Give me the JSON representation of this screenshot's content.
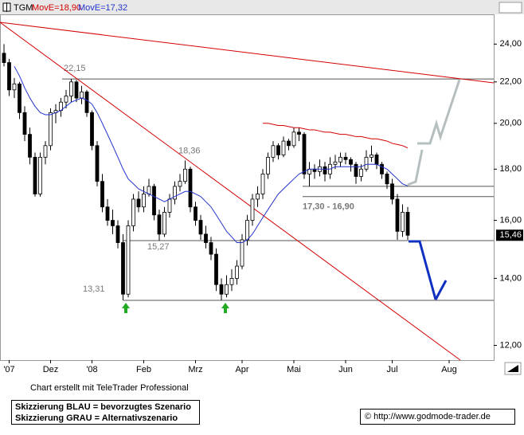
{
  "chart_data": {
    "type": "candlestick",
    "log_scale": true,
    "ylim": [
      11.6,
      25.7
    ],
    "yticks": [
      {
        "value": 12,
        "label": "12,00"
      },
      {
        "value": 14,
        "label": "14,00"
      },
      {
        "value": 16,
        "label": "16,00"
      },
      {
        "value": 18,
        "label": "18,00"
      },
      {
        "value": 20,
        "label": "20,00"
      },
      {
        "value": 22,
        "label": "22,00"
      },
      {
        "value": 24,
        "label": "24,00"
      }
    ],
    "categories": [
      null,
      "'07",
      null,
      null,
      null,
      null,
      null,
      null,
      null,
      "Dez",
      null,
      null,
      null,
      null,
      null,
      null,
      null,
      "'08",
      null,
      null,
      null,
      null,
      null,
      null,
      null,
      null,
      null,
      "Feb",
      null,
      null,
      null,
      null,
      null,
      null,
      null,
      null,
      null,
      "Mrz",
      null,
      null,
      null,
      null,
      null,
      null,
      null,
      null,
      "Apr",
      null,
      null,
      null,
      null,
      null,
      null,
      null,
      null,
      null,
      "Mai",
      null,
      null,
      null,
      null,
      null,
      null,
      null,
      null,
      null,
      "Jun",
      null,
      null,
      null,
      null,
      null,
      null,
      null,
      null,
      "Jul",
      null,
      null,
      null,
      null,
      null,
      null,
      null,
      null,
      null,
      null,
      "Aug",
      null,
      null,
      null,
      null,
      null,
      null,
      null,
      null
    ],
    "series": [
      {
        "name": "TGM",
        "open": [
          23.5,
          23.0,
          21.6,
          21.9,
          20.5,
          19.5,
          18.5,
          17.0,
          18.5,
          19.0,
          20.5,
          20.6,
          21.0,
          21.3,
          22.0,
          21.2,
          21.5,
          20.5,
          19.0,
          17.5,
          16.5,
          16.0,
          15.8,
          15.2,
          13.5,
          15.8,
          16.8,
          16.5,
          17.0,
          17.3,
          16.2,
          15.5,
          16.3,
          16.8,
          17.3,
          17.5,
          18.0,
          16.5,
          16.0,
          15.5,
          15.2,
          14.8,
          13.8,
          13.5,
          13.8,
          14.0,
          14.4,
          15.3,
          16.0,
          16.8,
          17.0,
          17.8,
          18.5,
          19.0,
          18.6,
          19.2,
          19.0,
          19.6,
          19.5,
          17.8,
          18.0,
          17.9,
          18.1,
          17.8,
          18.2,
          18.3,
          18.5,
          18.4,
          18.2,
          17.7,
          18.0,
          18.5,
          18.6,
          18.2,
          17.8,
          17.4,
          16.8,
          15.6,
          16.3,
          null,
          null,
          null,
          null,
          null,
          null,
          null,
          null,
          null,
          null,
          null,
          null,
          null,
          null,
          null,
          null
        ],
        "high": [
          24.0,
          23.2,
          22.2,
          22.0,
          20.8,
          19.8,
          18.7,
          18.7,
          19.2,
          20.7,
          20.9,
          21.2,
          21.6,
          22.15,
          22.1,
          21.8,
          21.6,
          20.6,
          19.2,
          17.8,
          16.8,
          16.4,
          16.0,
          15.5,
          16.0,
          17.0,
          17.1,
          17.3,
          17.6,
          17.4,
          16.4,
          16.5,
          17.0,
          17.5,
          17.8,
          18.36,
          18.1,
          16.7,
          16.2,
          15.8,
          15.4,
          15.0,
          14.0,
          14.1,
          14.3,
          14.6,
          15.5,
          16.2,
          17.0,
          17.3,
          18.0,
          18.7,
          19.2,
          19.1,
          19.4,
          19.3,
          19.8,
          19.8,
          19.6,
          18.3,
          18.2,
          18.4,
          18.3,
          18.5,
          18.6,
          18.7,
          18.7,
          18.5,
          18.3,
          18.2,
          18.8,
          19.0,
          18.7,
          18.3,
          17.9,
          17.6,
          17.0,
          16.6,
          16.5,
          null,
          null,
          null,
          null,
          null,
          null,
          null,
          null,
          null,
          null,
          null,
          null,
          null,
          null,
          null,
          null
        ],
        "low": [
          22.8,
          21.3,
          21.2,
          20.2,
          19.2,
          18.2,
          16.9,
          16.9,
          18.2,
          18.8,
          20.0,
          20.3,
          20.7,
          21.0,
          21.0,
          20.9,
          20.3,
          18.8,
          17.3,
          16.3,
          15.8,
          15.5,
          15.0,
          13.31,
          13.4,
          15.6,
          16.3,
          16.3,
          16.9,
          16.0,
          15.27,
          15.4,
          16.1,
          16.6,
          17.1,
          17.4,
          16.3,
          15.8,
          15.3,
          15.0,
          14.6,
          13.6,
          13.31,
          13.4,
          13.6,
          13.8,
          14.3,
          15.1,
          15.8,
          16.5,
          16.8,
          17.6,
          18.3,
          18.4,
          18.5,
          18.8,
          18.9,
          19.2,
          17.6,
          17.3,
          17.6,
          17.7,
          17.5,
          17.6,
          18.0,
          18.1,
          18.2,
          17.9,
          17.4,
          17.5,
          17.9,
          18.3,
          18.0,
          17.6,
          17.2,
          16.6,
          15.3,
          15.4,
          15.3,
          null,
          null,
          null,
          null,
          null,
          null,
          null,
          null,
          null,
          null,
          null,
          null,
          null,
          null,
          null,
          null
        ],
        "close": [
          23.0,
          21.6,
          21.9,
          20.5,
          19.5,
          18.5,
          17.0,
          18.5,
          19.0,
          20.5,
          20.6,
          21.0,
          21.3,
          22.0,
          21.2,
          21.5,
          20.5,
          19.0,
          17.5,
          16.5,
          16.0,
          15.8,
          15.2,
          13.5,
          15.8,
          16.8,
          16.5,
          17.0,
          17.3,
          16.2,
          15.5,
          16.3,
          16.8,
          17.3,
          17.5,
          18.0,
          16.5,
          16.0,
          15.5,
          15.2,
          14.8,
          13.8,
          13.5,
          13.8,
          14.0,
          14.4,
          15.3,
          16.0,
          16.8,
          17.0,
          17.8,
          18.5,
          19.0,
          18.6,
          19.2,
          19.0,
          19.6,
          19.5,
          17.8,
          18.0,
          17.9,
          18.1,
          17.8,
          18.2,
          18.3,
          18.5,
          18.4,
          18.2,
          17.7,
          18.0,
          18.5,
          18.6,
          18.2,
          17.8,
          17.4,
          16.8,
          15.6,
          16.3,
          15.46,
          null,
          null,
          null,
          null,
          null,
          null,
          null,
          null,
          null,
          null,
          null,
          null,
          null,
          null,
          null,
          null
        ]
      },
      {
        "name": "MovE=18,90",
        "color": "#d40000",
        "values": [
          null,
          null,
          null,
          null,
          null,
          null,
          null,
          null,
          null,
          null,
          null,
          null,
          null,
          null,
          null,
          null,
          null,
          null,
          null,
          null,
          null,
          null,
          null,
          null,
          null,
          null,
          null,
          null,
          null,
          null,
          null,
          null,
          null,
          null,
          null,
          null,
          null,
          null,
          null,
          null,
          null,
          null,
          null,
          null,
          null,
          null,
          null,
          null,
          null,
          null,
          20.0,
          20.0,
          19.95,
          19.9,
          19.9,
          19.85,
          19.8,
          19.8,
          19.75,
          19.7,
          19.7,
          19.65,
          19.6,
          19.6,
          19.55,
          19.5,
          19.5,
          19.45,
          19.4,
          19.4,
          19.35,
          19.3,
          19.3,
          19.25,
          19.2,
          19.1,
          19.05,
          19.0,
          18.9,
          null,
          null,
          null,
          null,
          null,
          null,
          null,
          null,
          null,
          null,
          null,
          null,
          null,
          null,
          null,
          null
        ]
      },
      {
        "name": "MovE=17,32",
        "color": "#2233cc",
        "values": [
          null,
          null,
          22.8,
          22.3,
          21.7,
          21.2,
          20.8,
          20.5,
          20.4,
          20.4,
          20.5,
          20.6,
          20.8,
          21.0,
          21.1,
          21.2,
          21.1,
          20.9,
          20.5,
          20.0,
          19.5,
          19.0,
          18.5,
          18.0,
          17.6,
          17.4,
          17.2,
          17.1,
          17.0,
          16.9,
          16.8,
          16.7,
          16.8,
          16.9,
          17.0,
          17.1,
          17.1,
          17.0,
          16.9,
          16.7,
          16.5,
          16.2,
          15.9,
          15.6,
          15.4,
          15.2,
          15.2,
          15.3,
          15.5,
          15.8,
          16.1,
          16.4,
          16.7,
          17.0,
          17.2,
          17.4,
          17.6,
          17.8,
          17.9,
          18.0,
          18.0,
          18.0,
          18.0,
          18.0,
          18.1,
          18.1,
          18.1,
          18.1,
          18.1,
          18.1,
          18.2,
          18.2,
          18.2,
          18.1,
          18.0,
          17.8,
          17.6,
          17.4,
          17.32,
          null,
          null,
          null,
          null,
          null,
          null,
          null,
          null,
          null,
          null,
          null,
          null,
          null,
          null,
          null,
          null
        ]
      }
    ],
    "annotations": [
      {
        "value": 22.15,
        "label": "22,15"
      },
      {
        "value": 18.36,
        "label": "18,36"
      },
      {
        "value": 15.27,
        "label": "15,27"
      },
      {
        "value": 13.31,
        "label": "13,31"
      }
    ],
    "range": {
      "values": [
        17.3,
        16.9
      ],
      "label": "17,30 - 16,90"
    },
    "last_price": {
      "value": 15.46,
      "label": "15,46"
    }
  },
  "footer": {
    "credit": "Chart erstellt mit TeleTrader Professional",
    "notes": [
      "Skizzierung BLAU = bevorzugtes Szenario",
      "Skizzierung GRAU = Alternativszenario"
    ],
    "copyright": "© http://www.godmode-trader.de"
  }
}
